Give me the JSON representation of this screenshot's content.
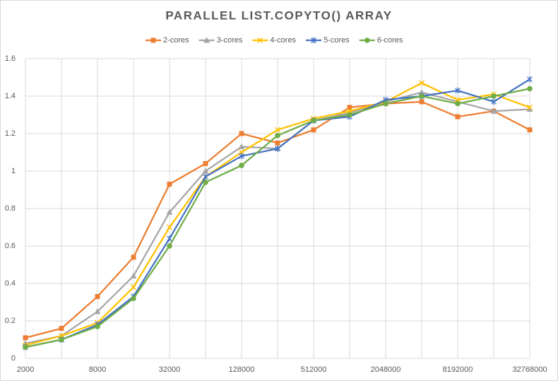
{
  "chart_data": {
    "type": "line",
    "title": "PARALLEL LIST.COPYTO() ARRAY",
    "categories": [
      "2000",
      null,
      "8000",
      null,
      "32000",
      null,
      "128000",
      null,
      "512000",
      null,
      "2048000",
      null,
      "8192000",
      null,
      "32768000"
    ],
    "series": [
      {
        "name": "2-cores",
        "color": "#ed7d31",
        "marker": "square",
        "values": [
          0.11,
          0.16,
          0.33,
          0.54,
          0.93,
          1.04,
          1.2,
          1.15,
          1.22,
          1.34,
          1.36,
          1.37,
          1.29,
          1.32,
          1.22
        ]
      },
      {
        "name": "3-cores",
        "color": "#a5a5a5",
        "marker": "triangle",
        "values": [
          0.08,
          0.12,
          0.25,
          0.44,
          0.78,
          1.0,
          1.13,
          1.12,
          1.27,
          1.31,
          1.37,
          1.42,
          1.37,
          1.32,
          1.33
        ]
      },
      {
        "name": "4-cores",
        "color": "#ffc000",
        "marker": "x",
        "values": [
          0.07,
          0.12,
          0.19,
          0.38,
          0.7,
          0.97,
          1.1,
          1.22,
          1.28,
          1.32,
          1.37,
          1.47,
          1.38,
          1.41,
          1.34
        ]
      },
      {
        "name": "5-cores",
        "color": "#4472c4",
        "marker": "star",
        "values": [
          0.06,
          0.1,
          0.18,
          0.33,
          0.64,
          0.97,
          1.08,
          1.12,
          1.27,
          1.29,
          1.38,
          1.4,
          1.43,
          1.37,
          1.49
        ]
      },
      {
        "name": "6-cores",
        "color": "#70ad47",
        "marker": "circle",
        "values": [
          0.06,
          0.1,
          0.17,
          0.32,
          0.6,
          0.94,
          1.03,
          1.19,
          1.27,
          1.3,
          1.36,
          1.4,
          1.36,
          1.4,
          1.44
        ]
      }
    ],
    "ylim": [
      0,
      1.6
    ],
    "yticks": [
      0,
      0.2,
      0.4,
      0.6,
      0.8,
      1,
      1.2,
      1.4,
      1.6
    ],
    "grid": true,
    "legend": "top"
  }
}
